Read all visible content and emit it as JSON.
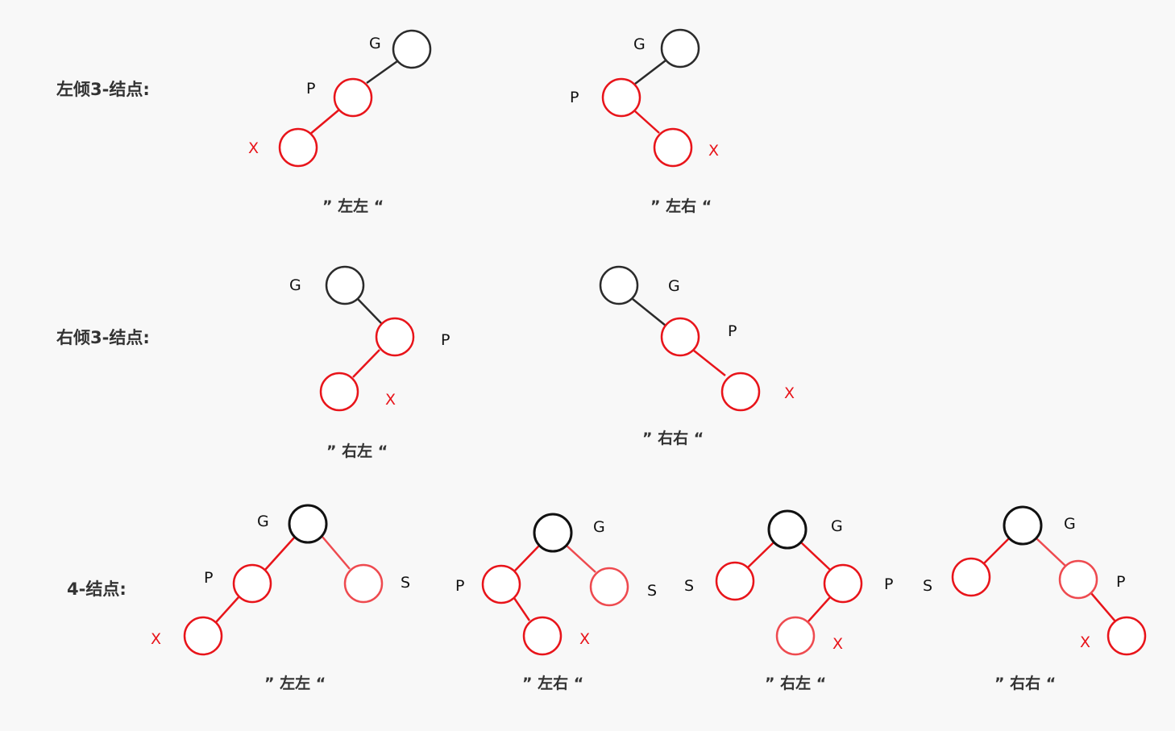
{
  "colors": {
    "black": "#2b2b2b",
    "red": "#e8141a",
    "light_red": "#ee4a4f",
    "text": "#333333"
  },
  "rows": [
    {
      "label": "左倾3-结点:"
    },
    {
      "label": "右倾3-结点:"
    },
    {
      "label": "4-结点:"
    }
  ],
  "letters": {
    "g": "G",
    "p": "P",
    "x": "X",
    "s": "S"
  },
  "captions": {
    "row1_a": "” 左左 “",
    "row1_b": "” 左右 “",
    "row2_a": "” 右左 “",
    "row2_b": "” 右右 “",
    "row3_a": "” 左左 “",
    "row3_b": "” 左右 “",
    "row3_c": "” 右左 “",
    "row3_d": "” 右右 “"
  }
}
